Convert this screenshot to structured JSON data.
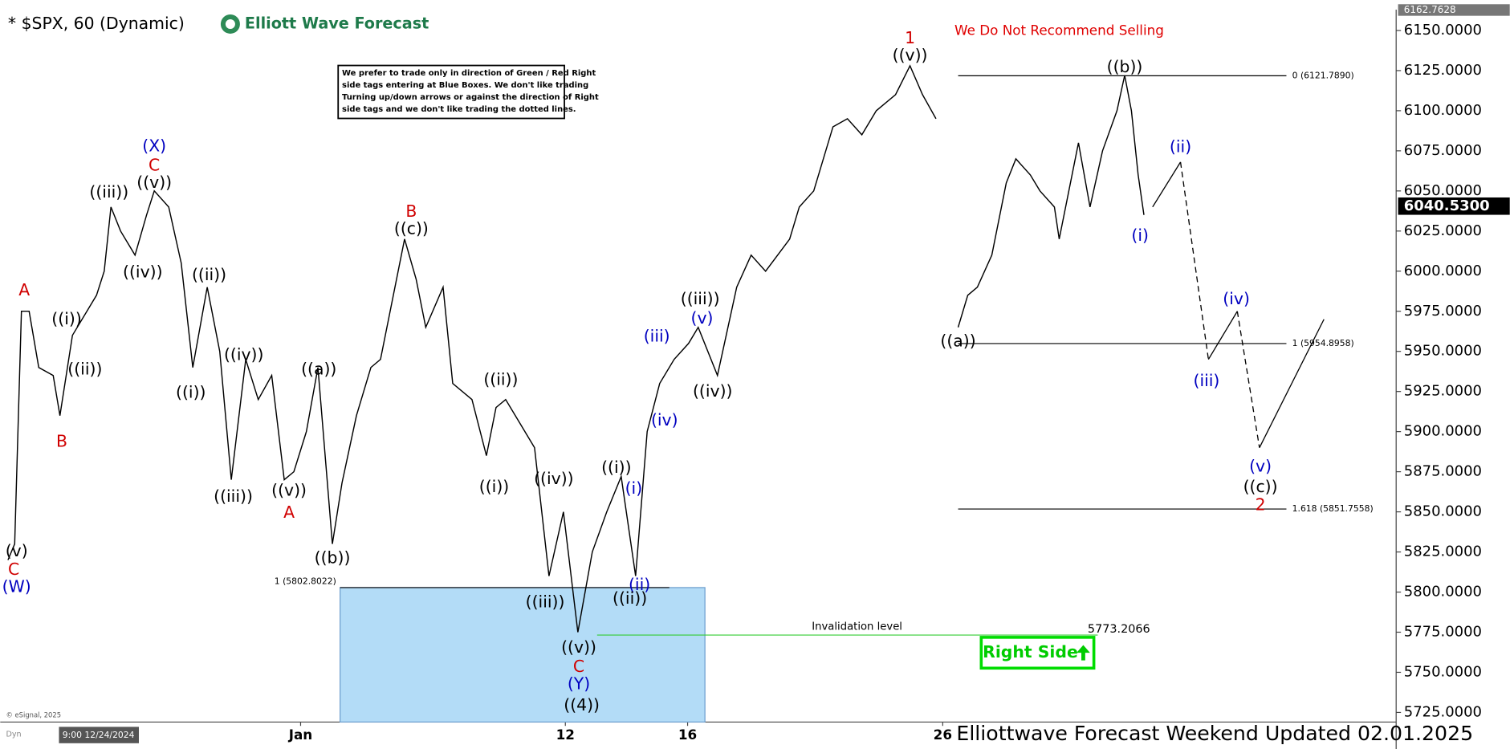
{
  "chart_data": {
    "type": "line",
    "title": "* $SPX, 60 (Dynamic)",
    "brand": "Elliott Wave Forecast",
    "warning": "We Do Not Recommend Selling",
    "notice": [
      "We prefer to trade only in direction of Green / Red Right",
      "side tags entering at Blue Boxes. We don't like trading",
      "Turning up/down arrows or against the direction of Right",
      "side tags and we don't like trading the dotted lines."
    ],
    "footer": "Elliottwave Forecast Weekend Updated 02.01.2025",
    "copyright": "© eSignal, 2025",
    "mode_label": "Dyn",
    "cursor_label": "9:00 12/24/2024",
    "right_side_label": "Right Side",
    "xlim": [
      0,
      1450
    ],
    "xticks": [
      {
        "value": 312,
        "label": "Jan"
      },
      {
        "value": 587,
        "label": "12"
      },
      {
        "value": 714,
        "label": "16"
      },
      {
        "value": 979,
        "label": "26"
      }
    ],
    "ylim": [
      5719,
      6163
    ],
    "yticks": [
      {
        "value": 5725,
        "label": "5725.0000"
      },
      {
        "value": 5750,
        "label": "5750.0000"
      },
      {
        "value": 5775,
        "label": "5775.0000"
      },
      {
        "value": 5800,
        "label": "5800.0000"
      },
      {
        "value": 5825,
        "label": "5825.0000"
      },
      {
        "value": 5850,
        "label": "5850.0000"
      },
      {
        "value": 5875,
        "label": "5875.0000"
      },
      {
        "value": 5900,
        "label": "5900.0000"
      },
      {
        "value": 5925,
        "label": "5925.0000"
      },
      {
        "value": 5950,
        "label": "5950.0000"
      },
      {
        "value": 5975,
        "label": "5975.0000"
      },
      {
        "value": 6000,
        "label": "6000.0000"
      },
      {
        "value": 6025,
        "label": "6025.0000"
      },
      {
        "value": 6050,
        "label": "6050.0000"
      },
      {
        "value": 6075,
        "label": "6075.0000"
      },
      {
        "value": 6100,
        "label": "6100.0000"
      },
      {
        "value": 6125,
        "label": "6125.0000"
      },
      {
        "value": 6150,
        "label": "6150.0000"
      }
    ],
    "last_price": {
      "value": 6040.53,
      "label": "6040.5300"
    },
    "high_price": {
      "value": 6162.7628,
      "label": "6162.7628"
    },
    "series": [
      {
        "color": "#000000",
        "x": [
          8,
          15,
          22,
          30,
          40,
          55,
          62,
          75,
          90,
          100,
          108,
          115,
          125,
          140,
          152,
          160,
          175,
          188,
          200,
          215,
          228,
          240,
          255,
          268,
          282,
          295,
          305,
          318,
          330,
          345,
          355,
          370,
          385,
          395,
          420,
          432,
          442,
          460,
          470,
          490,
          505,
          515,
          525,
          540,
          555,
          570,
          585,
          600,
          615,
          630,
          645,
          660,
          672,
          685,
          700,
          715,
          725,
          745,
          765,
          780,
          795,
          820,
          830,
          845,
          865,
          880,
          895,
          910,
          930,
          945,
          958,
          972,
          984,
          995,
          1005,
          1015,
          1030,
          1045,
          1055,
          1070,
          1080,
          1095,
          1100,
          1110,
          1120,
          1132,
          1145,
          1160,
          1168,
          1175,
          1182,
          1188
        ],
        "values": [
          5820,
          5830,
          5975,
          5975,
          5940,
          5935,
          5910,
          5960,
          5975,
          5985,
          6000,
          6040,
          6025,
          6010,
          6035,
          6050,
          6040,
          6005,
          5940,
          5990,
          5950,
          5870,
          5945,
          5920,
          5935,
          5870,
          5875,
          5900,
          5940,
          5830,
          5868,
          5910,
          5940,
          5945,
          6020,
          5995,
          5965,
          5990,
          5930,
          5920,
          5885,
          5915,
          5920,
          5905,
          5890,
          5810,
          5850,
          5775,
          5825,
          5850,
          5872,
          5810,
          5900,
          5930,
          5945,
          5955,
          5965,
          5935,
          5990,
          6010,
          6000,
          6020,
          6040,
          6050,
          6090,
          6095,
          6085,
          6100,
          6110,
          6128,
          6110,
          6095,
          null,
          5965,
          5985,
          5990,
          6010,
          6055,
          6070,
          6060,
          6050,
          6040,
          6020,
          6050,
          6080,
          6040,
          6075,
          6100,
          6122,
          6100,
          6060,
          6035
        ]
      },
      {
        "color": "#000000",
        "x": [
          1197,
          1226,
          1255,
          1285,
          1308,
          1375
        ],
        "values": [
          6040,
          6068,
          5945,
          5975,
          5890,
          5970
        ]
      }
    ],
    "fib_levels": [
      {
        "value": 6121.789,
        "label": "0 (6121.7890)"
      },
      {
        "value": 5954.8958,
        "label": "1 (5954.8958)"
      },
      {
        "value": 5851.7558,
        "label": "1.618 (5851.7558)"
      }
    ],
    "blue_box": {
      "value": 5802.8022,
      "label": "1 (5802.8022)"
    },
    "invalidation": {
      "value": 5773.2066,
      "label": "5773.2066",
      "text": "Invalidation level"
    },
    "annotations": [
      {
        "text": "(X)",
        "color": "#0000c0"
      },
      {
        "text": "C",
        "color": "#d00000"
      },
      {
        "text": "((v))",
        "color": "#000000"
      },
      {
        "text": "((iii))",
        "color": "#000000"
      },
      {
        "text": "((iv))",
        "color": "#000000"
      },
      {
        "text": "((ii))",
        "color": "#000000"
      },
      {
        "text": "((i))",
        "color": "#000000"
      },
      {
        "text": "((iv))",
        "color": "#000000"
      },
      {
        "text": "((iii))",
        "color": "#000000"
      },
      {
        "text": "((v))",
        "color": "#000000"
      },
      {
        "text": "A",
        "color": "#d00000"
      },
      {
        "text": "((a))",
        "color": "#000000"
      },
      {
        "text": "((b))",
        "color": "#000000"
      },
      {
        "text": "B",
        "color": "#d00000"
      },
      {
        "text": "((c))",
        "color": "#000000"
      },
      {
        "text": "((ii))",
        "color": "#000000"
      },
      {
        "text": "((i))",
        "color": "#000000"
      },
      {
        "text": "((iv))",
        "color": "#000000"
      },
      {
        "text": "((iii))",
        "color": "#000000"
      },
      {
        "text": "((i))",
        "color": "#000000"
      },
      {
        "text": "(i)",
        "color": "#0000c0"
      },
      {
        "text": "(ii)",
        "color": "#0000c0"
      },
      {
        "text": "((ii))",
        "color": "#000000"
      },
      {
        "text": "((v))",
        "color": "#000000"
      },
      {
        "text": "C",
        "color": "#d00000"
      },
      {
        "text": "(Y)",
        "color": "#0000c0"
      },
      {
        "text": "((4))",
        "color": "#000000"
      },
      {
        "text": "(iii)",
        "color": "#0000c0"
      },
      {
        "text": "(iv)",
        "color": "#0000c0"
      },
      {
        "text": "((iii))",
        "color": "#000000"
      },
      {
        "text": "(v)",
        "color": "#0000c0"
      },
      {
        "text": "((iv))",
        "color": "#000000"
      },
      {
        "text": "1",
        "color": "#d00000"
      },
      {
        "text": "((v))",
        "color": "#000000"
      },
      {
        "text": "((b))",
        "color": "#000000"
      },
      {
        "text": "((a))",
        "color": "#000000"
      },
      {
        "text": "(ii)",
        "color": "#0000c0"
      },
      {
        "text": "(i)",
        "color": "#0000c0"
      },
      {
        "text": "(iv)",
        "color": "#0000c0"
      },
      {
        "text": "(iii)",
        "color": "#0000c0"
      },
      {
        "text": "(v)",
        "color": "#0000c0"
      },
      {
        "text": "((c))",
        "color": "#000000"
      },
      {
        "text": "2",
        "color": "#d00000"
      },
      {
        "text": "A",
        "color": "#d00000"
      },
      {
        "text": "B",
        "color": "#d00000"
      },
      {
        "text": "((i))",
        "color": "#000000"
      },
      {
        "text": "((ii))",
        "color": "#000000"
      },
      {
        "text": "(v)",
        "color": "#000000"
      },
      {
        "text": "C",
        "color": "#d00000"
      },
      {
        "text": "(W)",
        "color": "#0000c0"
      }
    ]
  }
}
